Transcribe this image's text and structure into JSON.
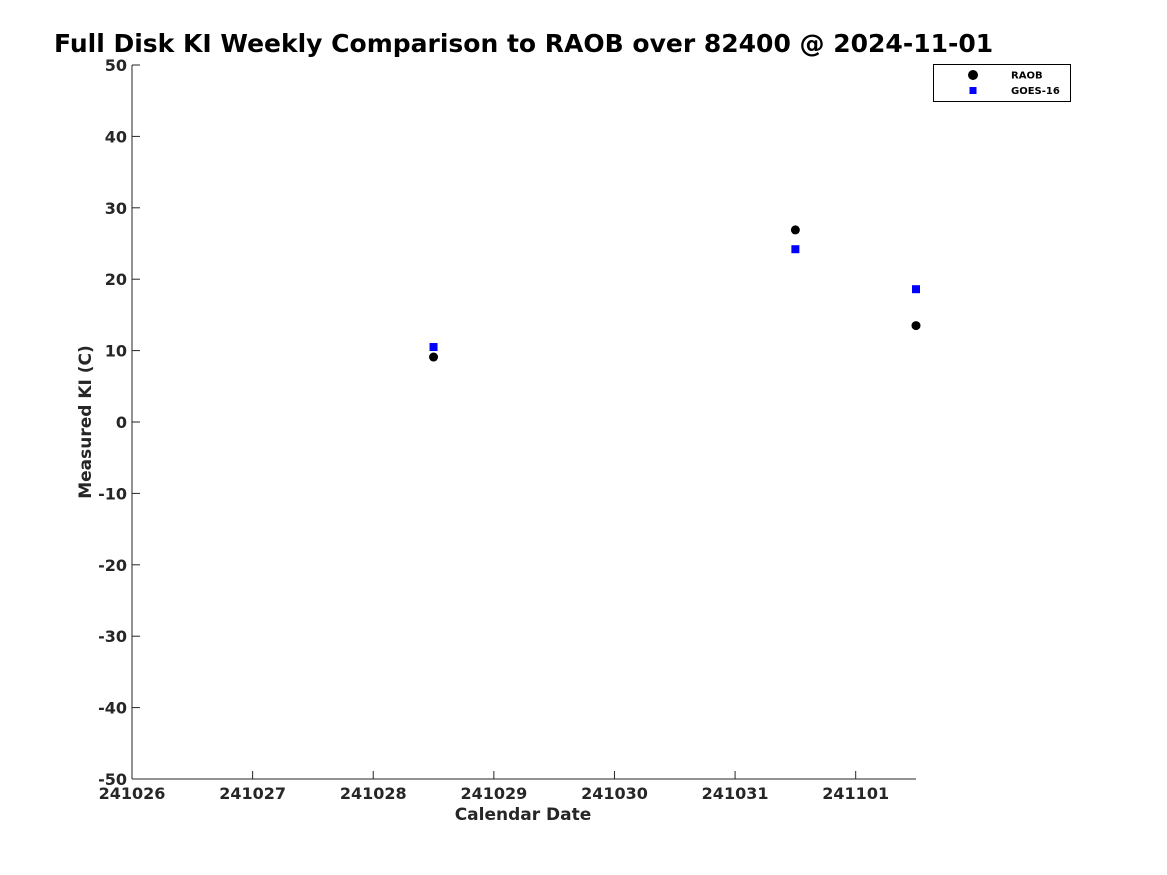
{
  "chart_data": {
    "type": "scatter",
    "title": "Full Disk KI Weekly Comparison to RAOB over 82400 @ 2024-11-01",
    "xlabel": "Calendar Date",
    "ylabel": "Measured KI (C)",
    "x_tick_labels": [
      "241026",
      "241027",
      "241028",
      "241029",
      "241030",
      "241031",
      "241101"
    ],
    "x_ticks": [
      "2024-10-26",
      "2024-10-27",
      "2024-10-28",
      "2024-10-29",
      "2024-10-30",
      "2024-10-31",
      "2024-11-01"
    ],
    "xlim": [
      "2024-10-26T00:00",
      "2024-11-01T12:00"
    ],
    "ylim": [
      -50,
      50
    ],
    "y_ticks": [
      -50,
      -40,
      -30,
      -20,
      -10,
      0,
      10,
      20,
      30,
      40,
      50
    ],
    "grid": false,
    "legend_position": "top-right",
    "series": [
      {
        "name": "RAOB",
        "marker": "circle",
        "color": "#000000",
        "points": [
          {
            "x": "2024-10-28T12:00",
            "y": 9.1
          },
          {
            "x": "2024-10-31T12:00",
            "y": 26.9
          },
          {
            "x": "2024-11-01T12:00",
            "y": 13.5
          }
        ]
      },
      {
        "name": "GOES-16",
        "marker": "square",
        "color": "#0000ff",
        "points": [
          {
            "x": "2024-10-28T12:00",
            "y": 10.5
          },
          {
            "x": "2024-10-31T12:00",
            "y": 24.2
          },
          {
            "x": "2024-11-01T12:00",
            "y": 18.6
          }
        ]
      }
    ]
  }
}
